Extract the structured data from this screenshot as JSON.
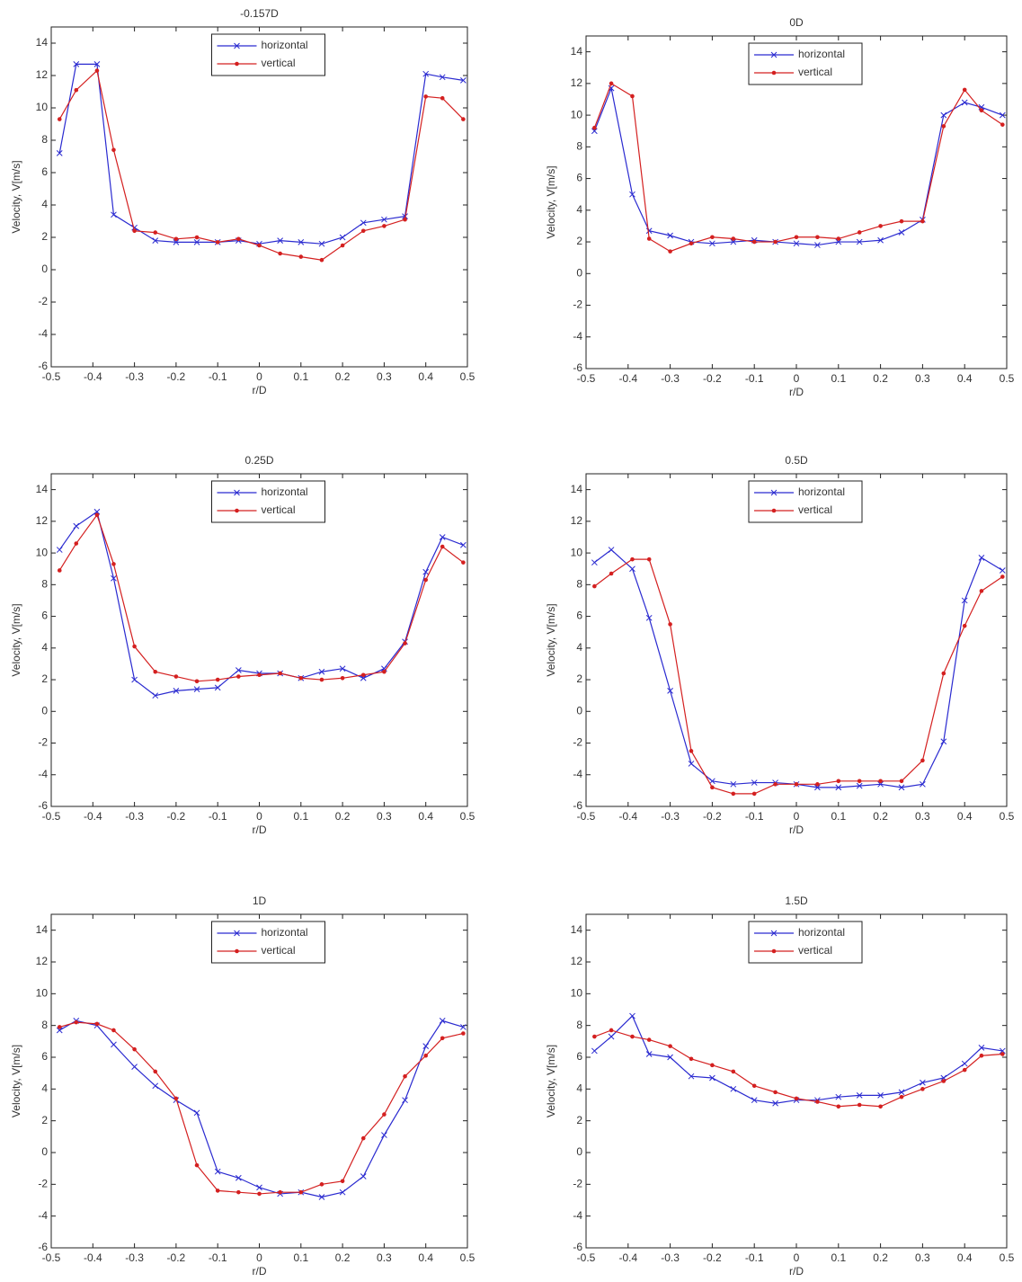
{
  "chart_data": [
    {
      "type": "line",
      "title": "-0.157D",
      "xlabel": "r/D",
      "ylabel": "Velocity, V[m/s]",
      "legend": "upper center",
      "x": [
        -0.48,
        -0.44,
        -0.39,
        -0.35,
        -0.3,
        -0.25,
        -0.2,
        -0.15,
        -0.1,
        -0.05,
        0,
        0.05,
        0.1,
        0.15,
        0.2,
        0.25,
        0.3,
        0.35,
        0.4,
        0.44,
        0.49
      ],
      "series": [
        {
          "name": "horizontal",
          "color": "#2a2ad0",
          "marker": "x",
          "values": [
            7.2,
            12.7,
            12.7,
            3.4,
            2.6,
            1.8,
            1.7,
            1.7,
            1.7,
            1.8,
            1.6,
            1.8,
            1.7,
            1.6,
            2.0,
            2.9,
            3.1,
            3.3,
            12.1,
            11.9,
            11.7
          ]
        },
        {
          "name": "vertical",
          "color": "#d42020",
          "marker": "dot",
          "values": [
            9.3,
            11.1,
            12.3,
            7.4,
            2.4,
            2.3,
            1.9,
            2.0,
            1.7,
            1.9,
            1.5,
            1.0,
            0.8,
            0.6,
            1.5,
            2.4,
            2.7,
            3.1,
            10.7,
            10.6,
            9.3
          ]
        }
      ],
      "xlim": [
        -0.5,
        0.5
      ],
      "ylim": [
        -6,
        15
      ],
      "xticks": [
        -0.5,
        -0.4,
        -0.3,
        -0.2,
        -0.1,
        0,
        0.1,
        0.2,
        0.3,
        0.4,
        0.5
      ],
      "yticks": [
        -6,
        -4,
        -2,
        0,
        2,
        4,
        6,
        8,
        10,
        12,
        14
      ]
    },
    {
      "type": "line",
      "title": "0D",
      "xlabel": "r/D",
      "ylabel": "Velocity, V[m/s]",
      "legend": "upper center",
      "x": [
        -0.48,
        -0.44,
        -0.39,
        -0.35,
        -0.3,
        -0.25,
        -0.2,
        -0.15,
        -0.1,
        -0.05,
        0,
        0.05,
        0.1,
        0.15,
        0.2,
        0.25,
        0.3,
        0.35,
        0.4,
        0.44,
        0.49
      ],
      "series": [
        {
          "name": "horizontal",
          "color": "#2a2ad0",
          "marker": "x",
          "values": [
            9.0,
            11.7,
            5.0,
            2.7,
            2.4,
            2.0,
            1.9,
            2.0,
            2.1,
            2.0,
            1.9,
            1.8,
            2.0,
            2.0,
            2.1,
            2.6,
            3.4,
            10.0,
            10.8,
            10.5,
            10.0
          ]
        },
        {
          "name": "vertical",
          "color": "#d42020",
          "marker": "dot",
          "values": [
            9.2,
            12.0,
            11.2,
            2.2,
            1.4,
            1.9,
            2.3,
            2.2,
            2.0,
            2.0,
            2.3,
            2.3,
            2.2,
            2.6,
            3.0,
            3.3,
            3.3,
            9.3,
            11.6,
            10.3,
            9.4
          ]
        }
      ],
      "xlim": [
        -0.5,
        0.5
      ],
      "ylim": [
        -6,
        15
      ],
      "xticks": [
        -0.5,
        -0.4,
        -0.3,
        -0.2,
        -0.1,
        0,
        0.1,
        0.2,
        0.3,
        0.4,
        0.5
      ],
      "yticks": [
        -6,
        -4,
        -2,
        0,
        2,
        4,
        6,
        8,
        10,
        12,
        14
      ]
    },
    {
      "type": "line",
      "title": "0.25D",
      "xlabel": "r/D",
      "ylabel": "Velocity, V[m/s]",
      "legend": "upper center",
      "x": [
        -0.48,
        -0.44,
        -0.39,
        -0.35,
        -0.3,
        -0.25,
        -0.2,
        -0.15,
        -0.1,
        -0.05,
        0,
        0.05,
        0.1,
        0.15,
        0.2,
        0.25,
        0.3,
        0.35,
        0.4,
        0.44,
        0.49
      ],
      "series": [
        {
          "name": "horizontal",
          "color": "#2a2ad0",
          "marker": "x",
          "values": [
            10.2,
            11.7,
            12.6,
            8.4,
            2.0,
            1.0,
            1.3,
            1.4,
            1.5,
            2.6,
            2.4,
            2.4,
            2.1,
            2.5,
            2.7,
            2.1,
            2.7,
            4.4,
            8.8,
            11.0,
            10.5
          ]
        },
        {
          "name": "vertical",
          "color": "#d42020",
          "marker": "dot",
          "values": [
            8.9,
            10.6,
            12.4,
            9.3,
            4.1,
            2.5,
            2.2,
            1.9,
            2.0,
            2.2,
            2.3,
            2.4,
            2.1,
            2.0,
            2.1,
            2.3,
            2.5,
            4.3,
            8.3,
            10.4,
            9.4
          ]
        }
      ],
      "xlim": [
        -0.5,
        0.5
      ],
      "ylim": [
        -6,
        15
      ],
      "xticks": [
        -0.5,
        -0.4,
        -0.3,
        -0.2,
        -0.1,
        0,
        0.1,
        0.2,
        0.3,
        0.4,
        0.5
      ],
      "yticks": [
        -6,
        -4,
        -2,
        0,
        2,
        4,
        6,
        8,
        10,
        12,
        14
      ]
    },
    {
      "type": "line",
      "title": "0.5D",
      "xlabel": "r/D",
      "ylabel": "Velocity, V[m/s]",
      "legend": "upper center",
      "x": [
        -0.48,
        -0.44,
        -0.39,
        -0.35,
        -0.3,
        -0.25,
        -0.2,
        -0.15,
        -0.1,
        -0.05,
        0,
        0.05,
        0.1,
        0.15,
        0.2,
        0.25,
        0.3,
        0.35,
        0.4,
        0.44,
        0.49
      ],
      "series": [
        {
          "name": "horizontal",
          "color": "#2a2ad0",
          "marker": "x",
          "values": [
            9.4,
            10.2,
            9.0,
            5.9,
            1.3,
            -3.3,
            -4.4,
            -4.6,
            -4.5,
            -4.5,
            -4.6,
            -4.8,
            -4.8,
            -4.7,
            -4.6,
            -4.8,
            -4.6,
            -1.9,
            7.0,
            9.7,
            8.9
          ]
        },
        {
          "name": "vertical",
          "color": "#d42020",
          "marker": "dot",
          "values": [
            7.9,
            8.7,
            9.6,
            9.6,
            5.5,
            -2.5,
            -4.8,
            -5.2,
            -5.2,
            -4.6,
            -4.6,
            -4.6,
            -4.4,
            -4.4,
            -4.4,
            -4.4,
            -3.1,
            2.4,
            5.4,
            7.6,
            8.5
          ]
        }
      ],
      "xlim": [
        -0.5,
        0.5
      ],
      "ylim": [
        -6,
        15
      ],
      "xticks": [
        -0.5,
        -0.4,
        -0.3,
        -0.2,
        -0.1,
        0,
        0.1,
        0.2,
        0.3,
        0.4,
        0.5
      ],
      "yticks": [
        -6,
        -4,
        -2,
        0,
        2,
        4,
        6,
        8,
        10,
        12,
        14
      ]
    },
    {
      "type": "line",
      "title": "1D",
      "xlabel": "r/D",
      "ylabel": "Velocity, V[m/s]",
      "legend": "upper center",
      "x": [
        -0.48,
        -0.44,
        -0.39,
        -0.35,
        -0.3,
        -0.25,
        -0.2,
        -0.15,
        -0.1,
        -0.05,
        0,
        0.05,
        0.1,
        0.15,
        0.2,
        0.25,
        0.3,
        0.35,
        0.4,
        0.44,
        0.49
      ],
      "series": [
        {
          "name": "horizontal",
          "color": "#2a2ad0",
          "marker": "x",
          "values": [
            7.7,
            8.3,
            8.0,
            6.8,
            5.4,
            4.2,
            3.3,
            2.5,
            -1.2,
            -1.6,
            -2.2,
            -2.6,
            -2.5,
            -2.8,
            -2.5,
            -1.5,
            1.1,
            3.3,
            6.7,
            8.3,
            7.9
          ]
        },
        {
          "name": "vertical",
          "color": "#d42020",
          "marker": "dot",
          "values": [
            7.9,
            8.2,
            8.1,
            7.7,
            6.5,
            5.1,
            3.4,
            -0.8,
            -2.4,
            -2.5,
            -2.6,
            -2.5,
            -2.5,
            -2.0,
            -1.8,
            0.9,
            2.4,
            4.8,
            6.1,
            7.2,
            7.5
          ]
        }
      ],
      "xlim": [
        -0.5,
        0.5
      ],
      "ylim": [
        -6,
        15
      ],
      "xticks": [
        -0.5,
        -0.4,
        -0.3,
        -0.2,
        -0.1,
        0,
        0.1,
        0.2,
        0.3,
        0.4,
        0.5
      ],
      "yticks": [
        -6,
        -4,
        -2,
        0,
        2,
        4,
        6,
        8,
        10,
        12,
        14
      ]
    },
    {
      "type": "line",
      "title": "1.5D",
      "xlabel": "r/D",
      "ylabel": "Velocity, V[m/s]",
      "legend": "upper center",
      "x": [
        -0.48,
        -0.44,
        -0.39,
        -0.35,
        -0.3,
        -0.25,
        -0.2,
        -0.15,
        -0.1,
        -0.05,
        0,
        0.05,
        0.1,
        0.15,
        0.2,
        0.25,
        0.3,
        0.35,
        0.4,
        0.44,
        0.49
      ],
      "series": [
        {
          "name": "horizontal",
          "color": "#2a2ad0",
          "marker": "x",
          "values": [
            6.4,
            7.3,
            8.6,
            6.2,
            6.0,
            4.8,
            4.7,
            4.0,
            3.3,
            3.1,
            3.3,
            3.3,
            3.5,
            3.6,
            3.6,
            3.8,
            4.4,
            4.7,
            5.6,
            6.6,
            6.4
          ]
        },
        {
          "name": "vertical",
          "color": "#d42020",
          "marker": "dot",
          "values": [
            7.3,
            7.7,
            7.3,
            7.1,
            6.7,
            5.9,
            5.5,
            5.1,
            4.2,
            3.8,
            3.4,
            3.2,
            2.9,
            3.0,
            2.9,
            3.5,
            4.0,
            4.5,
            5.2,
            6.1,
            6.2
          ]
        }
      ],
      "xlim": [
        -0.5,
        0.5
      ],
      "ylim": [
        -6,
        15
      ],
      "xticks": [
        -0.5,
        -0.4,
        -0.3,
        -0.2,
        -0.1,
        0,
        0.1,
        0.2,
        0.3,
        0.4,
        0.5
      ],
      "yticks": [
        -6,
        -4,
        -2,
        0,
        2,
        4,
        6,
        8,
        10,
        12,
        14
      ]
    }
  ]
}
